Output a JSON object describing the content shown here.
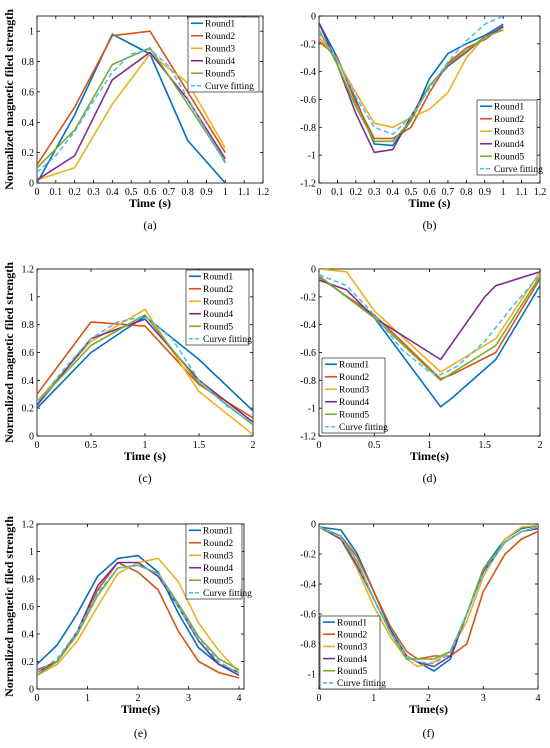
{
  "colors": {
    "Round1": "#0072BD",
    "Round2": "#D95319",
    "Round3": "#EDB120",
    "Round4": "#7E2F8E",
    "Round5": "#77AC30",
    "Curve fitting": "#4DBEEE"
  },
  "chart_data": [
    {
      "type": "line",
      "panel_label": "(a)",
      "xlabel": "Time (s)",
      "ylabel": "Normalized magnetic filed strength",
      "xlim": [
        0,
        1.2
      ],
      "ylim": [
        0,
        1.1
      ],
      "xticks": [
        "0",
        "0.1",
        "0.2",
        "0.3",
        "0.4",
        "0.5",
        "0.6",
        "0.7",
        "0.8",
        "0.9",
        "1",
        "1.1",
        "1.2"
      ],
      "yticks": [
        "0",
        "0.2",
        "0.4",
        "0.6",
        "0.8",
        "1"
      ],
      "legend_position": "top-right",
      "series": [
        {
          "name": "Round1",
          "x": [
            0,
            0.2,
            0.4,
            0.6,
            0.8,
            1
          ],
          "y": [
            0,
            0.45,
            0.98,
            0.85,
            0.28,
            0
          ]
        },
        {
          "name": "Round2",
          "x": [
            0,
            0.2,
            0.4,
            0.6,
            0.8,
            1
          ],
          "y": [
            0.12,
            0.5,
            0.97,
            1.0,
            0.6,
            0.2
          ]
        },
        {
          "name": "Round3",
          "x": [
            0,
            0.2,
            0.4,
            0.6,
            0.8,
            1
          ],
          "y": [
            0.02,
            0.1,
            0.52,
            0.85,
            0.66,
            0.23
          ]
        },
        {
          "name": "Round4",
          "x": [
            0,
            0.2,
            0.4,
            0.6,
            0.8,
            1
          ],
          "y": [
            0.02,
            0.18,
            0.68,
            0.86,
            0.55,
            0.16
          ]
        },
        {
          "name": "Round5",
          "x": [
            0,
            0.2,
            0.4,
            0.6,
            0.8,
            1
          ],
          "y": [
            0.1,
            0.35,
            0.78,
            0.89,
            0.52,
            0.14
          ]
        },
        {
          "name": "Curve fitting",
          "dashed": true,
          "x": [
            0,
            0.1,
            0.2,
            0.3,
            0.4,
            0.5,
            0.6,
            0.7,
            0.8,
            0.9,
            1
          ],
          "y": [
            0.07,
            0.18,
            0.34,
            0.54,
            0.73,
            0.85,
            0.88,
            0.77,
            0.56,
            0.34,
            0.13
          ]
        }
      ]
    },
    {
      "type": "line",
      "panel_label": "(b)",
      "xlabel": "Time (s)",
      "ylabel": "",
      "xlim": [
        0,
        1.2
      ],
      "ylim": [
        -1.2,
        0
      ],
      "xticks": [
        "0",
        "0.1",
        "0.2",
        "0.3",
        "0.4",
        "0.5",
        "0.6",
        "0.7",
        "0.8",
        "0.9",
        "1",
        "1.1",
        "1.2"
      ],
      "yticks": [
        "-1.2",
        "-1",
        "-0.8",
        "-0.6",
        "-0.4",
        "-0.2",
        "0"
      ],
      "legend_position": "bottom-right",
      "series": [
        {
          "name": "Round1",
          "x": [
            0,
            0.1,
            0.2,
            0.3,
            0.4,
            0.5,
            0.6,
            0.7,
            0.8,
            0.9,
            1
          ],
          "y": [
            -0.05,
            -0.3,
            -0.6,
            -0.92,
            -0.93,
            -0.75,
            -0.45,
            -0.27,
            -0.2,
            -0.14,
            -0.06
          ]
        },
        {
          "name": "Round2",
          "x": [
            0,
            0.1,
            0.2,
            0.3,
            0.4,
            0.5,
            0.6,
            0.7,
            0.8,
            0.9,
            1
          ],
          "y": [
            -0.18,
            -0.3,
            -0.62,
            -0.88,
            -0.88,
            -0.8,
            -0.55,
            -0.34,
            -0.23,
            -0.17,
            -0.07
          ]
        },
        {
          "name": "Round3",
          "x": [
            0,
            0.1,
            0.2,
            0.3,
            0.4,
            0.5,
            0.6,
            0.7,
            0.8,
            0.9,
            1
          ],
          "y": [
            -0.15,
            -0.32,
            -0.55,
            -0.77,
            -0.8,
            -0.73,
            -0.67,
            -0.55,
            -0.3,
            -0.15,
            -0.1
          ]
        },
        {
          "name": "Round4",
          "x": [
            0,
            0.1,
            0.2,
            0.3,
            0.4,
            0.5,
            0.6,
            0.7,
            0.8,
            0.9,
            1
          ],
          "y": [
            -0.05,
            -0.35,
            -0.7,
            -0.98,
            -0.96,
            -0.72,
            -0.5,
            -0.36,
            -0.26,
            -0.15,
            -0.08
          ]
        },
        {
          "name": "Round5",
          "x": [
            0,
            0.1,
            0.2,
            0.3,
            0.4,
            0.5,
            0.6,
            0.7,
            0.8,
            0.9,
            1
          ],
          "y": [
            -0.1,
            -0.35,
            -0.65,
            -0.9,
            -0.9,
            -0.75,
            -0.5,
            -0.35,
            -0.25,
            -0.15,
            -0.1
          ]
        },
        {
          "name": "Curve fitting",
          "dashed": true,
          "x": [
            0,
            0.1,
            0.2,
            0.3,
            0.4,
            0.5,
            0.6,
            0.7,
            0.8,
            0.9,
            1
          ],
          "y": [
            -0.12,
            -0.32,
            -0.58,
            -0.8,
            -0.85,
            -0.72,
            -0.52,
            -0.33,
            -0.18,
            -0.06,
            0.0
          ]
        }
      ]
    },
    {
      "type": "line",
      "panel_label": "(c)",
      "xlabel": "Time (s)",
      "ylabel": "Normalized magnetic filed strength",
      "xlim": [
        0,
        2
      ],
      "ylim": [
        0,
        1.2
      ],
      "xticks": [
        "0",
        "0.5",
        "1",
        "1.5",
        "2"
      ],
      "yticks": [
        "0",
        "0.2",
        "0.4",
        "0.6",
        "0.8",
        "1",
        "1.2"
      ],
      "legend_position": "top-right",
      "series": [
        {
          "name": "Round1",
          "x": [
            0,
            0.5,
            1,
            1.5,
            2
          ],
          "y": [
            0.2,
            0.6,
            0.86,
            0.55,
            0.18
          ]
        },
        {
          "name": "Round2",
          "x": [
            0,
            0.5,
            1,
            1.5,
            2
          ],
          "y": [
            0.3,
            0.82,
            0.79,
            0.37,
            0.13
          ]
        },
        {
          "name": "Round3",
          "x": [
            0,
            0.5,
            1,
            1.5,
            2
          ],
          "y": [
            0.25,
            0.68,
            0.91,
            0.32,
            0.01
          ]
        },
        {
          "name": "Round4",
          "x": [
            0,
            0.5,
            1,
            1.5,
            2
          ],
          "y": [
            0.22,
            0.7,
            0.84,
            0.4,
            0.1
          ]
        },
        {
          "name": "Round5",
          "x": [
            0,
            0.5,
            1,
            1.5,
            2
          ],
          "y": [
            0.24,
            0.65,
            0.87,
            0.38,
            0.08
          ]
        },
        {
          "name": "Curve fitting",
          "dashed": true,
          "x": [
            0,
            0.25,
            0.5,
            0.75,
            1,
            1.25,
            1.5,
            1.75,
            2
          ],
          "y": [
            0.24,
            0.48,
            0.7,
            0.82,
            0.86,
            0.7,
            0.4,
            0.22,
            0.09
          ]
        }
      ]
    },
    {
      "type": "line",
      "panel_label": "(d)",
      "xlabel": "Time(s)",
      "ylabel": "",
      "xlim": [
        0,
        2
      ],
      "ylim": [
        -1.2,
        0
      ],
      "xticks": [
        "0",
        "0.5",
        "1",
        "1.5",
        "2"
      ],
      "yticks": [
        "-1.2",
        "-1",
        "-0.8",
        "-0.6",
        "-0.4",
        "-0.2",
        "0"
      ],
      "legend_position": "bottom-left",
      "series": [
        {
          "name": "Round1",
          "x": [
            0,
            0.5,
            1.1,
            1.2,
            1.6,
            2
          ],
          "y": [
            -0.05,
            -0.35,
            -0.99,
            -0.93,
            -0.65,
            -0.12
          ]
        },
        {
          "name": "Round2",
          "x": [
            0,
            0.5,
            1.1,
            1.2,
            1.6,
            2
          ],
          "y": [
            -0.06,
            -0.33,
            -0.79,
            -0.76,
            -0.6,
            -0.07
          ]
        },
        {
          "name": "Round3",
          "x": [
            0,
            0.25,
            0.5,
            1.1,
            1.6,
            2
          ],
          "y": [
            0,
            -0.02,
            -0.3,
            -0.74,
            -0.5,
            -0.02
          ]
        },
        {
          "name": "Round4",
          "x": [
            0,
            0.25,
            0.5,
            1.1,
            1.5,
            1.6,
            2
          ],
          "y": [
            -0.08,
            -0.15,
            -0.35,
            -0.65,
            -0.2,
            -0.12,
            -0.02
          ]
        },
        {
          "name": "Round5",
          "x": [
            0,
            0.5,
            1.1,
            1.6,
            2
          ],
          "y": [
            -0.05,
            -0.35,
            -0.8,
            -0.55,
            -0.05
          ]
        },
        {
          "name": "Curve fitting",
          "dashed": true,
          "x": [
            0,
            0.25,
            0.5,
            0.75,
            1,
            1.1,
            1.25,
            1.5,
            1.75,
            2
          ],
          "y": [
            -0.04,
            -0.12,
            -0.33,
            -0.58,
            -0.74,
            -0.76,
            -0.7,
            -0.52,
            -0.27,
            -0.04
          ]
        }
      ]
    },
    {
      "type": "line",
      "panel_label": "(e)",
      "xlabel": "Time(s)",
      "ylabel": "Normalized magnetic filed strength",
      "xlim": [
        0,
        4.1
      ],
      "ylim": [
        0,
        1.2
      ],
      "xticks": [
        "0",
        "1",
        "2",
        "3",
        "4"
      ],
      "yticks": [
        "0",
        "0.2",
        "0.4",
        "0.6",
        "0.8",
        "1",
        "1.2"
      ],
      "legend_position": "top-right",
      "series": [
        {
          "name": "Round1",
          "x": [
            0,
            0.4,
            0.8,
            1.2,
            1.6,
            2,
            2.4,
            2.8,
            3.2,
            3.6,
            4
          ],
          "y": [
            0.18,
            0.32,
            0.55,
            0.82,
            0.95,
            0.97,
            0.85,
            0.55,
            0.3,
            0.18,
            0.12
          ]
        },
        {
          "name": "Round2",
          "x": [
            0,
            0.4,
            0.8,
            1.2,
            1.6,
            2,
            2.4,
            2.8,
            3.2,
            3.6,
            4
          ],
          "y": [
            0.14,
            0.2,
            0.4,
            0.72,
            0.92,
            0.85,
            0.72,
            0.42,
            0.2,
            0.12,
            0.08
          ]
        },
        {
          "name": "Round3",
          "x": [
            0,
            0.4,
            0.8,
            1.2,
            1.6,
            2,
            2.4,
            2.8,
            3.2,
            3.6,
            4
          ],
          "y": [
            0.1,
            0.18,
            0.35,
            0.6,
            0.84,
            0.92,
            0.95,
            0.78,
            0.48,
            0.28,
            0.12
          ]
        },
        {
          "name": "Round4",
          "x": [
            0,
            0.4,
            0.8,
            1.2,
            1.6,
            2,
            2.4,
            2.8,
            3.2,
            3.6,
            4
          ],
          "y": [
            0.12,
            0.2,
            0.42,
            0.75,
            0.92,
            0.92,
            0.82,
            0.6,
            0.35,
            0.18,
            0.1
          ]
        },
        {
          "name": "Round5",
          "x": [
            0,
            0.4,
            0.8,
            1.2,
            1.6,
            2,
            2.4,
            2.8,
            3.2,
            3.6,
            4
          ],
          "y": [
            0.1,
            0.2,
            0.4,
            0.68,
            0.88,
            0.9,
            0.84,
            0.62,
            0.38,
            0.22,
            0.14
          ]
        },
        {
          "name": "Curve fitting",
          "dashed": true,
          "x": [
            0,
            0.4,
            0.8,
            1.2,
            1.6,
            2,
            2.4,
            2.8,
            3.2,
            3.6,
            4
          ],
          "y": [
            0.12,
            0.22,
            0.42,
            0.7,
            0.88,
            0.9,
            0.84,
            0.6,
            0.36,
            0.2,
            0.11
          ]
        }
      ]
    },
    {
      "type": "line",
      "panel_label": "(f)",
      "xlabel": "Time(s)",
      "ylabel": "",
      "xlim": [
        0,
        4
      ],
      "ylim": [
        -1.1,
        0
      ],
      "xticks": [
        "0",
        "1",
        "2",
        "3",
        "4"
      ],
      "yticks": [
        "-1",
        "-0.8",
        "-0.6",
        "-0.4",
        "-0.2",
        "0"
      ],
      "legend_position": "bottom-left",
      "series": [
        {
          "name": "Round1",
          "x": [
            0,
            0.4,
            0.7,
            1,
            1.3,
            1.6,
            1.8,
            2.1,
            2.4,
            2.7,
            3,
            3.4,
            3.7,
            4
          ],
          "y": [
            -0.02,
            -0.04,
            -0.2,
            -0.45,
            -0.7,
            -0.88,
            -0.92,
            -0.98,
            -0.9,
            -0.6,
            -0.3,
            -0.1,
            -0.03,
            -0.01
          ]
        },
        {
          "name": "Round2",
          "x": [
            0,
            0.4,
            0.7,
            1,
            1.3,
            1.6,
            1.8,
            2.1,
            2.4,
            2.7,
            3,
            3.4,
            3.7,
            4
          ],
          "y": [
            -0.02,
            -0.08,
            -0.22,
            -0.45,
            -0.68,
            -0.85,
            -0.9,
            -0.88,
            -0.88,
            -0.8,
            -0.45,
            -0.2,
            -0.1,
            -0.05
          ]
        },
        {
          "name": "Round3",
          "x": [
            0,
            0.4,
            0.7,
            1,
            1.3,
            1.6,
            1.8,
            2.1,
            2.4,
            2.7,
            3,
            3.4,
            3.7,
            4
          ],
          "y": [
            -0.02,
            -0.1,
            -0.3,
            -0.55,
            -0.75,
            -0.9,
            -0.95,
            -0.92,
            -0.85,
            -0.65,
            -0.35,
            -0.1,
            -0.02,
            -0.01
          ]
        },
        {
          "name": "Round4",
          "x": [
            0,
            0.4,
            0.7,
            1,
            1.3,
            1.6,
            1.8,
            2.1,
            2.4,
            2.7,
            3,
            3.4,
            3.7,
            4
          ],
          "y": [
            -0.02,
            -0.1,
            -0.28,
            -0.5,
            -0.72,
            -0.88,
            -0.92,
            -0.95,
            -0.88,
            -0.6,
            -0.32,
            -0.12,
            -0.05,
            -0.03
          ]
        },
        {
          "name": "Round5",
          "x": [
            0,
            0.4,
            0.7,
            1,
            1.3,
            1.6,
            1.8,
            2.1,
            2.4,
            2.7,
            3,
            3.4,
            3.7,
            4
          ],
          "y": [
            -0.02,
            -0.08,
            -0.25,
            -0.5,
            -0.72,
            -0.9,
            -0.9,
            -0.9,
            -0.85,
            -0.6,
            -0.3,
            -0.12,
            -0.05,
            -0.02
          ]
        },
        {
          "name": "Curve fitting",
          "dashed": true,
          "x": [
            0,
            0.4,
            0.7,
            1,
            1.3,
            1.6,
            1.8,
            2.1,
            2.4,
            2.7,
            3,
            3.4,
            3.7,
            4
          ],
          "y": [
            -0.02,
            -0.09,
            -0.26,
            -0.5,
            -0.72,
            -0.88,
            -0.92,
            -0.93,
            -0.86,
            -0.6,
            -0.33,
            -0.12,
            -0.05,
            -0.02
          ]
        }
      ]
    }
  ]
}
